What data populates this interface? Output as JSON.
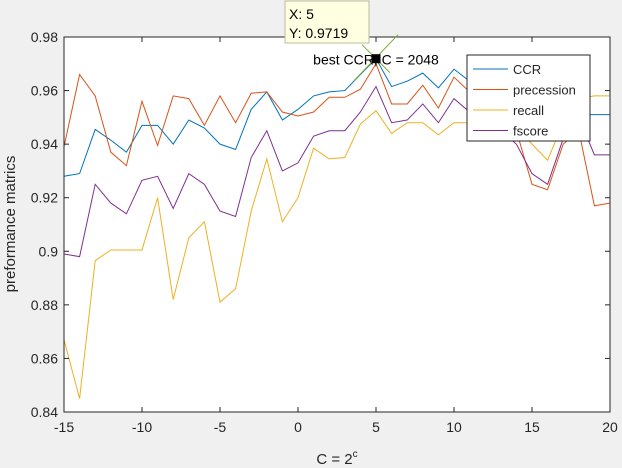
{
  "chart_data": {
    "type": "line",
    "xlabel_base": "C = 2",
    "xlabel_sup": "c",
    "ylabel": "preformance matrics",
    "xlim": [
      -15,
      20
    ],
    "ylim": [
      0.84,
      0.98
    ],
    "xticks": [
      -15,
      -10,
      -5,
      0,
      5,
      10,
      15,
      20
    ],
    "xtick_labels": [
      "-15",
      "-10",
      "-5",
      "0",
      "5",
      "10",
      "15",
      "20"
    ],
    "yticks": [
      0.84,
      0.86,
      0.88,
      0.9,
      0.92,
      0.94,
      0.96,
      0.98
    ],
    "ytick_labels": [
      "0.84",
      "0.86",
      "0.88",
      "0.9",
      "0.92",
      "0.94",
      "0.96",
      "0.98"
    ],
    "grid": false,
    "legend_position": "top-right",
    "x": [
      -15,
      -14,
      -13,
      -12,
      -11,
      -10,
      -9,
      -8,
      -7,
      -6,
      -5,
      -4,
      -3,
      -2,
      -1,
      0,
      1,
      2,
      3,
      4,
      5,
      6,
      7,
      8,
      9,
      10,
      11,
      12,
      13,
      14,
      15,
      16,
      17,
      18,
      19,
      20
    ],
    "series": [
      {
        "name": "CCR",
        "color": "#0072BD",
        "values": [
          0.928,
          0.929,
          0.9455,
          0.9415,
          0.937,
          0.947,
          0.947,
          0.94,
          0.949,
          0.946,
          0.94,
          0.938,
          0.953,
          0.9595,
          0.949,
          0.953,
          0.958,
          0.9595,
          0.96,
          0.966,
          0.9719,
          0.9615,
          0.9635,
          0.9665,
          0.961,
          0.968,
          0.9635,
          0.958,
          0.951,
          0.95,
          0.95,
          0.95,
          0.95,
          0.951,
          0.951,
          0.951
        ]
      },
      {
        "name": "precession",
        "color": "#D95319",
        "values": [
          0.939,
          0.966,
          0.958,
          0.937,
          0.932,
          0.956,
          0.9395,
          0.958,
          0.957,
          0.947,
          0.958,
          0.948,
          0.959,
          0.9595,
          0.952,
          0.9505,
          0.952,
          0.9575,
          0.9575,
          0.9605,
          0.97,
          0.955,
          0.955,
          0.962,
          0.9535,
          0.965,
          0.9595,
          0.956,
          0.952,
          0.945,
          0.925,
          0.923,
          0.94,
          0.945,
          0.917,
          0.918
        ]
      },
      {
        "name": "recall",
        "color": "#EDB120",
        "values": [
          0.867,
          0.845,
          0.8965,
          0.9005,
          0.9005,
          0.9005,
          0.92,
          0.882,
          0.905,
          0.911,
          0.881,
          0.886,
          0.915,
          0.9345,
          0.911,
          0.92,
          0.9385,
          0.9345,
          0.935,
          0.9475,
          0.9525,
          0.944,
          0.948,
          0.948,
          0.9435,
          0.948,
          0.948,
          0.948,
          0.948,
          0.946,
          0.94,
          0.934,
          0.948,
          0.957,
          0.958,
          0.958
        ]
      },
      {
        "name": "fscore",
        "color": "#7E2F8E",
        "values": [
          0.899,
          0.898,
          0.925,
          0.918,
          0.914,
          0.9265,
          0.928,
          0.916,
          0.929,
          0.925,
          0.915,
          0.913,
          0.935,
          0.945,
          0.93,
          0.933,
          0.943,
          0.945,
          0.945,
          0.952,
          0.9615,
          0.948,
          0.949,
          0.955,
          0.948,
          0.957,
          0.952,
          0.95,
          0.945,
          0.94,
          0.929,
          0.925,
          0.942,
          0.95,
          0.936,
          0.936
        ]
      }
    ],
    "annotation": {
      "text": "best CCR, C = 2048",
      "x": 5,
      "y": 0.9719
    },
    "datatip": {
      "x_label": "X: 5",
      "y_label": "Y: 0.9719",
      "x": 5,
      "y": 0.9719
    }
  }
}
